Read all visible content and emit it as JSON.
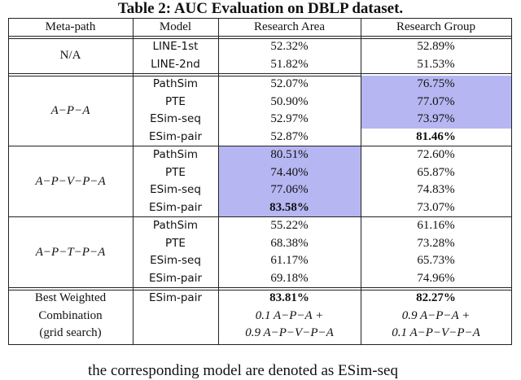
{
  "title": "Table 2: AUC Evaluation on DBLP dataset.",
  "header": [
    "Meta-path",
    "Model",
    "Research Area",
    "Research Group"
  ],
  "groups": [
    {
      "meta_path": "N/A",
      "italic": false,
      "rows": [
        {
          "model": "LINE-1st",
          "area": "52.32%",
          "group": "52.89%"
        },
        {
          "model": "LINE-2nd",
          "area": "51.82%",
          "group": "51.53%"
        }
      ]
    },
    {
      "meta_path": "A−P−A",
      "italic": true,
      "rows": [
        {
          "model": "PathSim",
          "area": "52.07%",
          "group": "76.75%",
          "highlight": "group"
        },
        {
          "model": "PTE",
          "area": "50.90%",
          "group": "77.07%",
          "highlight": "group"
        },
        {
          "model": "ESim-seq",
          "area": "52.97%",
          "group": "73.97%",
          "highlight": "group"
        },
        {
          "model": "ESim-pair",
          "area": "52.87%",
          "group": "81.46%",
          "bold": "group"
        }
      ]
    },
    {
      "meta_path": "A−P−V−P−A",
      "italic": true,
      "rows": [
        {
          "model": "PathSim",
          "area": "80.51%",
          "group": "72.60%",
          "highlight": "area"
        },
        {
          "model": "PTE",
          "area": "74.40%",
          "group": "65.87%",
          "highlight": "area"
        },
        {
          "model": "ESim-seq",
          "area": "77.06%",
          "group": "74.83%",
          "highlight": "area"
        },
        {
          "model": "ESim-pair",
          "area": "83.58%",
          "group": "73.07%",
          "highlight": "area",
          "bold": "area"
        }
      ]
    },
    {
      "meta_path": "A−P−T−P−A",
      "italic": true,
      "rows": [
        {
          "model": "PathSim",
          "area": "55.22%",
          "group": "61.16%"
        },
        {
          "model": "PTE",
          "area": "68.38%",
          "group": "73.28%"
        },
        {
          "model": "ESim-seq",
          "area": "61.17%",
          "group": "65.73%"
        },
        {
          "model": "ESim-pair",
          "area": "69.18%",
          "group": "74.96%"
        }
      ]
    }
  ],
  "best": {
    "label": [
      "Best Weighted",
      "Combination",
      "(grid search)"
    ],
    "model": "ESim-pair",
    "area": [
      "83.81%",
      "0.1 A−P−A +",
      "0.9 A−P−V−P−A"
    ],
    "group": [
      "82.27%",
      "0.9 A−P−A +",
      "0.1 A−P−V−P−A"
    ]
  },
  "footer": "the corresponding model are denoted as ESim-seq"
}
